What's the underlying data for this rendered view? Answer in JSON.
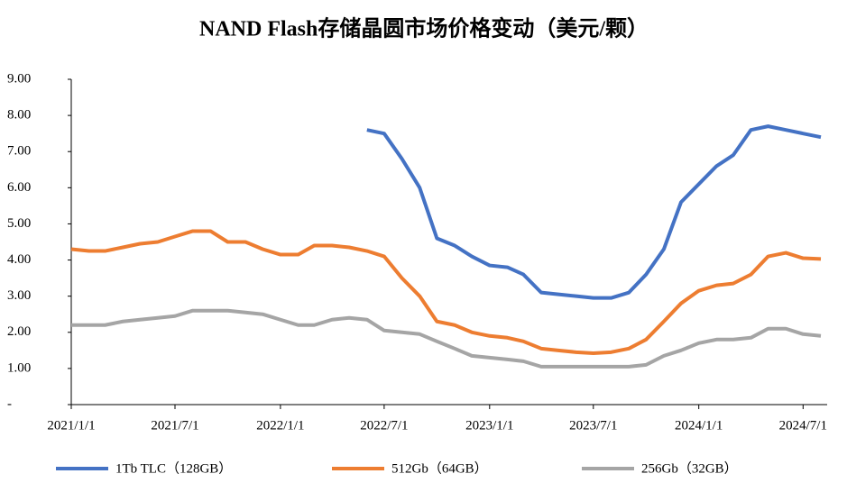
{
  "chart_data": {
    "type": "line",
    "title": "NAND Flash存储晶圆市场价格变动（美元/颗）",
    "x": [
      "2021/1/1",
      "2021/2/1",
      "2021/3/1",
      "2021/4/1",
      "2021/5/1",
      "2021/6/1",
      "2021/7/1",
      "2021/8/1",
      "2021/9/1",
      "2021/10/1",
      "2021/11/1",
      "2021/12/1",
      "2022/1/1",
      "2022/2/1",
      "2022/3/1",
      "2022/4/1",
      "2022/5/1",
      "2022/6/1",
      "2022/7/1",
      "2022/8/1",
      "2022/9/1",
      "2022/10/1",
      "2022/11/1",
      "2022/12/1",
      "2023/1/1",
      "2023/2/1",
      "2023/3/1",
      "2023/4/1",
      "2023/5/1",
      "2023/6/1",
      "2023/7/1",
      "2023/8/1",
      "2023/9/1",
      "2023/10/1",
      "2023/11/1",
      "2023/12/1",
      "2024/1/1",
      "2024/2/1",
      "2024/3/1",
      "2024/4/1",
      "2024/5/1",
      "2024/6/1",
      "2024/7/1",
      "2024/8/1"
    ],
    "series": [
      {
        "name": "1Tb TLC（128GB）",
        "color": "#4472c4",
        "values": [
          null,
          null,
          null,
          null,
          null,
          null,
          null,
          null,
          null,
          null,
          null,
          null,
          null,
          null,
          null,
          null,
          null,
          7.6,
          7.5,
          6.8,
          6.0,
          4.6,
          4.4,
          4.1,
          3.85,
          3.8,
          3.6,
          3.1,
          3.05,
          3.0,
          2.95,
          2.95,
          3.1,
          3.6,
          4.3,
          5.6,
          6.1,
          6.6,
          6.9,
          7.6,
          7.7,
          7.6,
          7.5,
          7.4
        ]
      },
      {
        "name": "512Gb（64GB）",
        "color": "#ed7d31",
        "values": [
          4.3,
          4.25,
          4.25,
          4.35,
          4.45,
          4.5,
          4.65,
          4.8,
          4.8,
          4.5,
          4.5,
          4.3,
          4.15,
          4.15,
          4.4,
          4.4,
          4.35,
          4.25,
          4.1,
          3.5,
          3.0,
          2.3,
          2.2,
          2.0,
          1.9,
          1.85,
          1.75,
          1.55,
          1.5,
          1.45,
          1.42,
          1.45,
          1.55,
          1.8,
          2.3,
          2.8,
          3.15,
          3.3,
          3.35,
          3.6,
          4.1,
          4.2,
          4.05,
          4.03
        ]
      },
      {
        "name": "256Gb（32GB）",
        "color": "#a5a5a5",
        "values": [
          2.2,
          2.2,
          2.2,
          2.3,
          2.35,
          2.4,
          2.45,
          2.6,
          2.6,
          2.6,
          2.55,
          2.5,
          2.35,
          2.2,
          2.2,
          2.35,
          2.4,
          2.35,
          2.05,
          2.0,
          1.95,
          1.75,
          1.55,
          1.35,
          1.3,
          1.25,
          1.2,
          1.05,
          1.05,
          1.05,
          1.05,
          1.05,
          1.05,
          1.1,
          1.35,
          1.5,
          1.7,
          1.8,
          1.8,
          1.85,
          2.1,
          2.1,
          1.95,
          1.9
        ]
      }
    ],
    "xlim": [
      "2021/1/1",
      "2024/8/12"
    ],
    "xticks": [
      "2021/1/1",
      "2021/7/1",
      "2022/1/1",
      "2022/7/1",
      "2023/1/1",
      "2023/7/1",
      "2024/1/1",
      "2024/7/1"
    ],
    "ylim": [
      0,
      9
    ],
    "yticks": [
      {
        "value": 0,
        "label": "-"
      },
      {
        "value": 1,
        "label": "1.00"
      },
      {
        "value": 2,
        "label": "2.00"
      },
      {
        "value": 3,
        "label": "3.00"
      },
      {
        "value": 4,
        "label": "4.00"
      },
      {
        "value": 5,
        "label": "5.00"
      },
      {
        "value": 6,
        "label": "6.00"
      },
      {
        "value": 7,
        "label": "7.00"
      },
      {
        "value": 8,
        "label": "8.00"
      },
      {
        "value": 9,
        "label": "9.00"
      }
    ],
    "grid": false,
    "legend": "bottom"
  }
}
